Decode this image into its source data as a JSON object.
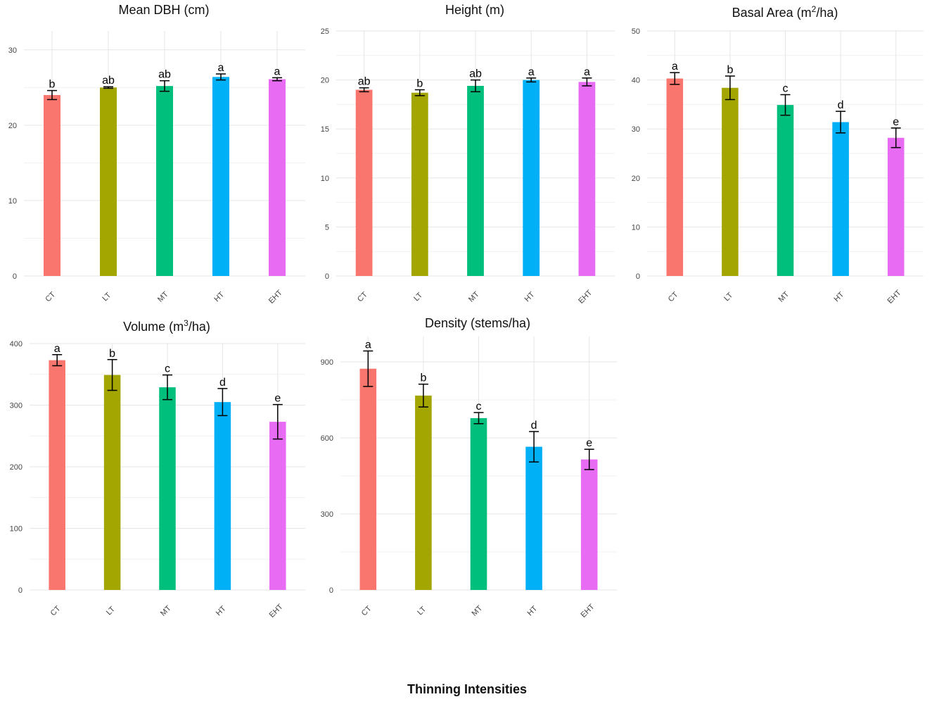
{
  "chart_data": [
    {
      "type": "bar",
      "title": "Mean DBH (cm)",
      "categories": [
        "CT",
        "LT",
        "MT",
        "HT",
        "EHT"
      ],
      "values": [
        24.0,
        25.0,
        25.2,
        26.4,
        26.1
      ],
      "errors": [
        0.6,
        0.1,
        0.7,
        0.4,
        0.2
      ],
      "labels": [
        "b",
        "ab",
        "ab",
        "a",
        "a"
      ],
      "yticks": [
        0,
        10,
        20,
        30
      ],
      "ylim": [
        0,
        32.5
      ],
      "xlabel": "",
      "ylabel": "",
      "grid": true
    },
    {
      "type": "bar",
      "title": "Height (m)",
      "categories": [
        "CT",
        "LT",
        "MT",
        "HT",
        "EHT"
      ],
      "values": [
        19.0,
        18.7,
        19.4,
        20.0,
        19.8
      ],
      "errors": [
        0.2,
        0.3,
        0.6,
        0.2,
        0.4
      ],
      "labels": [
        "ab",
        "b",
        "ab",
        "a",
        "a"
      ],
      "yticks": [
        0,
        5,
        10,
        15,
        20,
        25
      ],
      "ylim": [
        0,
        25
      ],
      "xlabel": "",
      "ylabel": "",
      "grid": true
    },
    {
      "type": "bar",
      "title_main": "Basal Area (m",
      "title_sup": "2",
      "title_end": "/ha)",
      "categories": [
        "CT",
        "LT",
        "MT",
        "HT",
        "EHT"
      ],
      "values": [
        40.3,
        38.4,
        34.9,
        31.4,
        28.2
      ],
      "errors": [
        1.2,
        2.4,
        2.1,
        2.2,
        2.0
      ],
      "labels": [
        "a",
        "b",
        "c",
        "d",
        "e"
      ],
      "yticks": [
        0,
        10,
        20,
        30,
        40,
        50
      ],
      "ylim": [
        0,
        50
      ],
      "xlabel": "",
      "ylabel": "",
      "grid": true
    },
    {
      "type": "bar",
      "title_main": "Volume (m",
      "title_sup": "3",
      "title_end": "/ha)",
      "categories": [
        "CT",
        "LT",
        "MT",
        "HT",
        "EHT"
      ],
      "values": [
        373,
        349,
        329,
        305,
        273
      ],
      "errors": [
        9,
        25,
        20,
        22,
        28
      ],
      "labels": [
        "a",
        "b",
        "c",
        "d",
        "e"
      ],
      "yticks": [
        0,
        100,
        200,
        300,
        400
      ],
      "ylim": [
        0,
        400
      ],
      "xlabel": "",
      "ylabel": "",
      "grid": true
    },
    {
      "type": "bar",
      "title": "Density (stems/ha)",
      "categories": [
        "CT",
        "LT",
        "MT",
        "HT",
        "EHT"
      ],
      "values": [
        873,
        767,
        678,
        565,
        515
      ],
      "errors": [
        70,
        45,
        22,
        60,
        40
      ],
      "labels": [
        "a",
        "b",
        "c",
        "d",
        "e"
      ],
      "yticks": [
        0,
        300,
        600,
        900
      ],
      "ylim": [
        0,
        1000
      ],
      "xlabel": "",
      "ylabel": "",
      "grid": true
    }
  ],
  "shared_xlabel": "Thinning Intensities",
  "colors": [
    "#F8766D",
    "#A3A500",
    "#00BF7D",
    "#00B0F6",
    "#E76BF3"
  ],
  "grid_color": "#e6e6e6",
  "error_color": "#000000"
}
